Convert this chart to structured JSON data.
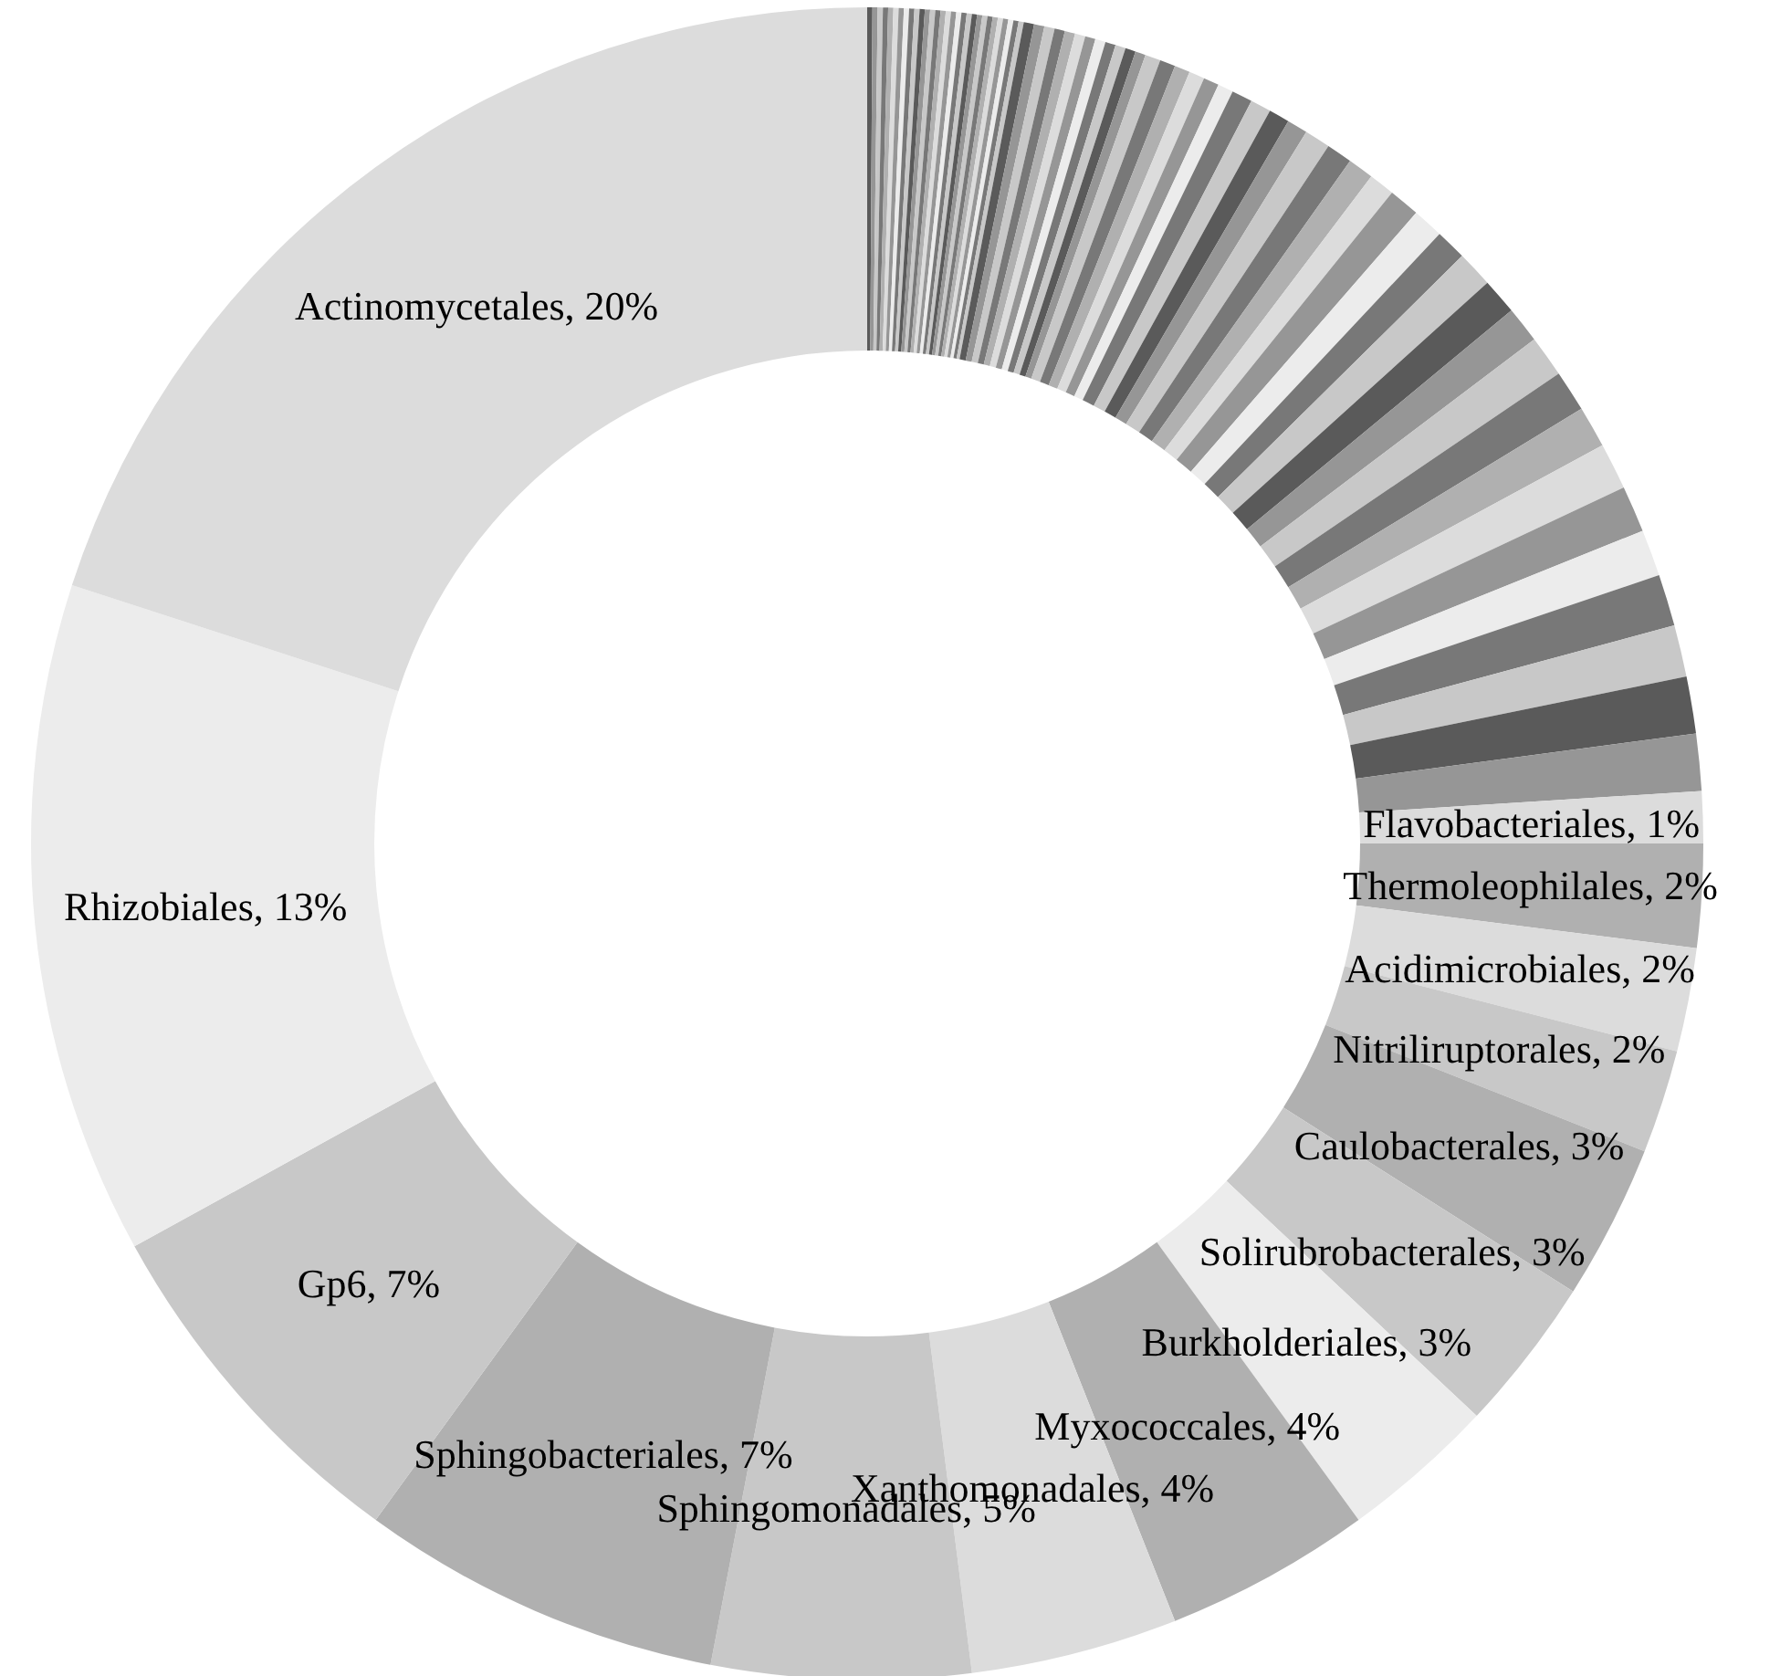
{
  "chart_data": {
    "type": "donut",
    "categories": [
      null,
      null,
      null,
      null,
      null,
      null,
      null,
      null,
      null,
      null,
      null,
      null,
      null,
      null,
      null,
      null,
      null,
      null,
      null,
      null,
      null,
      null,
      null,
      null,
      null,
      null,
      null,
      null,
      null,
      null,
      null,
      null,
      null,
      null,
      null,
      null,
      null,
      null,
      null,
      null,
      null,
      null,
      null,
      null,
      null,
      null,
      null,
      null,
      null,
      null,
      null,
      null,
      null,
      null,
      null,
      null,
      null,
      null,
      null,
      null,
      null,
      null,
      null,
      null,
      null,
      null,
      null,
      null,
      null,
      null,
      null,
      null,
      "Flavobacteriales",
      "Thermoleophilales",
      "Acidimicrobiales",
      "Nitriliruptorales",
      "Caulobacterales",
      "Solirubrobacterales",
      "Burkholderiales",
      "Myxococcales",
      "Xanthomonadales",
      "Sphingomonadales",
      "Sphingobacteriales",
      "Gp6",
      "Rhizobiales",
      "Actinomycetales"
    ],
    "values": [
      0.1,
      0.1,
      0.1,
      0.1,
      0.1,
      0.1,
      0.1,
      0.1,
      0.1,
      0.1,
      0.1,
      0.1,
      0.1,
      0.1,
      0.1,
      0.1,
      0.1,
      0.1,
      0.1,
      0.1,
      0.1,
      0.1,
      0.1,
      0.1,
      0.1,
      0.1,
      0.1,
      0.1,
      0.1,
      0.1,
      0.2,
      0.2,
      0.2,
      0.2,
      0.2,
      0.2,
      0.2,
      0.2,
      0.2,
      0.2,
      0.2,
      0.2,
      0.3,
      0.3,
      0.3,
      0.3,
      0.3,
      0.3,
      0.4,
      0.4,
      0.4,
      0.4,
      0.5,
      0.5,
      0.5,
      0.5,
      0.6,
      0.6,
      0.6,
      0.7,
      0.7,
      0.7,
      0.8,
      0.8,
      0.8,
      0.9,
      0.9,
      0.9,
      1.0,
      1.0,
      1.1,
      1.1,
      1,
      2,
      2,
      2,
      3,
      3,
      3,
      4,
      4,
      5,
      7,
      7,
      13,
      20
    ],
    "value_labels": [
      null,
      null,
      null,
      null,
      null,
      null,
      null,
      null,
      null,
      null,
      null,
      null,
      null,
      null,
      null,
      null,
      null,
      null,
      null,
      null,
      null,
      null,
      null,
      null,
      null,
      null,
      null,
      null,
      null,
      null,
      null,
      null,
      null,
      null,
      null,
      null,
      null,
      null,
      null,
      null,
      null,
      null,
      null,
      null,
      null,
      null,
      null,
      null,
      null,
      null,
      null,
      null,
      null,
      null,
      null,
      null,
      null,
      null,
      null,
      null,
      null,
      null,
      null,
      null,
      null,
      null,
      null,
      null,
      null,
      null,
      null,
      null,
      "1%",
      "2%",
      "2%",
      "2%",
      "3%",
      "3%",
      "3%",
      "4%",
      "4%",
      "5%",
      "7%",
      "7%",
      "13%",
      "20%"
    ],
    "colors": [
      "#5a5a5a",
      "#969696",
      "#c8c8c8",
      "#787878",
      "#b0b0b0",
      "#dcdcdc",
      "#969696",
      "#ececec",
      "#787878",
      "#c8c8c8",
      "#5a5a5a",
      "#969696",
      "#c8c8c8",
      "#787878",
      "#b0b0b0",
      "#dcdcdc",
      "#969696",
      "#ececec",
      "#787878",
      "#c8c8c8",
      "#5a5a5a",
      "#969696",
      "#c8c8c8",
      "#787878",
      "#b0b0b0",
      "#dcdcdc",
      "#969696",
      "#ececec",
      "#787878",
      "#c8c8c8",
      "#5a5a5a",
      "#969696",
      "#c8c8c8",
      "#787878",
      "#b0b0b0",
      "#dcdcdc",
      "#969696",
      "#ececec",
      "#787878",
      "#c8c8c8",
      "#5a5a5a",
      "#969696",
      "#c8c8c8",
      "#787878",
      "#b0b0b0",
      "#dcdcdc",
      "#969696",
      "#ececec",
      "#787878",
      "#c8c8c8",
      "#5a5a5a",
      "#969696",
      "#c8c8c8",
      "#787878",
      "#b0b0b0",
      "#dcdcdc",
      "#969696",
      "#ececec",
      "#787878",
      "#c8c8c8",
      "#5a5a5a",
      "#969696",
      "#c8c8c8",
      "#787878",
      "#b0b0b0",
      "#dcdcdc",
      "#969696",
      "#ececec",
      "#787878",
      "#c8c8c8",
      "#5a5a5a",
      "#969696",
      "#dcdcdc",
      "#b0b0b0",
      "#dcdcdc",
      "#c8c8c8",
      "#b0b0b0",
      "#c8c8c8",
      "#ececec",
      "#b0b0b0",
      "#dcdcdc",
      "#c8c8c8",
      "#b0b0b0",
      "#c8c8c8",
      "#ececec",
      "#dcdcdc"
    ]
  }
}
